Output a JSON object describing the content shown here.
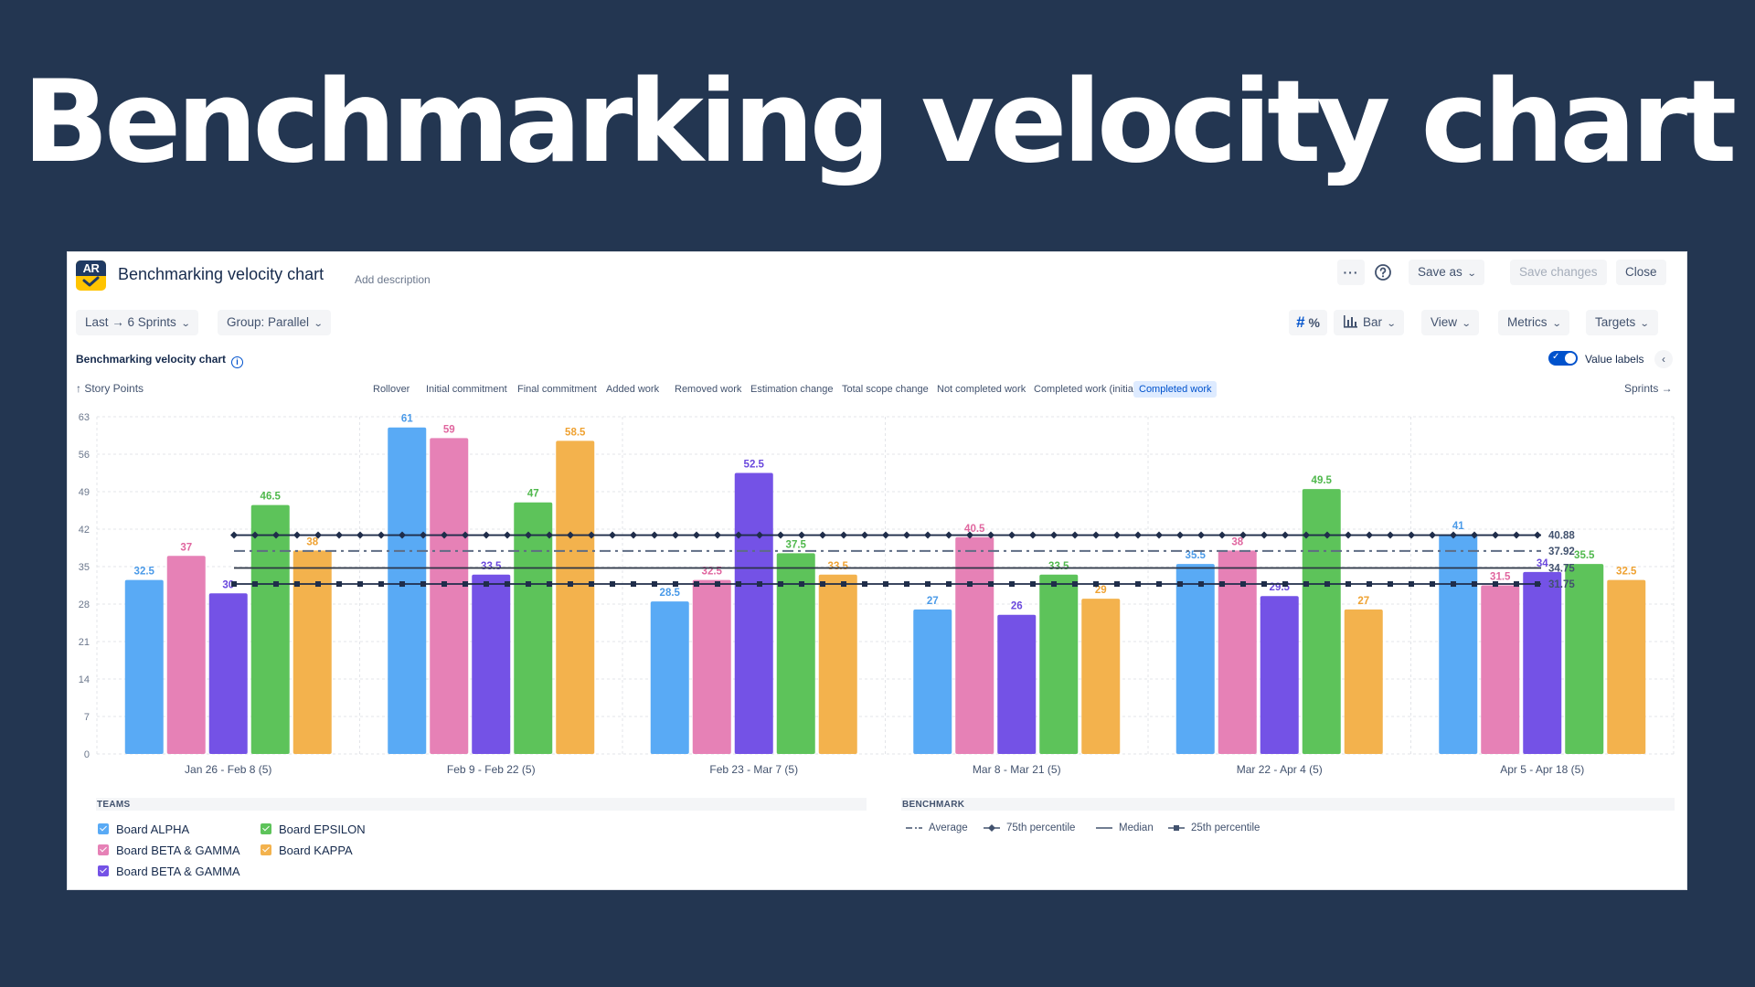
{
  "hero": {
    "title": "Benchmarking velocity chart"
  },
  "header": {
    "logo_text": "AR",
    "title": "Benchmarking velocity chart",
    "add_description": "Add description",
    "more_icon": "more-icon",
    "help_icon": "help-icon",
    "save_as": "Save as",
    "save_changes": "Save changes",
    "close": "Close"
  },
  "toolbar": {
    "range": "Last → 6 Sprints",
    "group": "Group: Parallel",
    "number_icon": "#",
    "percent_icon": "%",
    "chart_type": "Bar",
    "view": "View",
    "metrics": "Metrics",
    "targets": "Targets"
  },
  "chart_header": {
    "title": "Benchmarking velocity chart",
    "value_labels": "Value labels",
    "y_unit": "↑ Story Points",
    "x_unit": "Sprints →",
    "metric_tabs": [
      "Rollover",
      "Initial commitment",
      "Final commitment",
      "Added work",
      "Removed work",
      "Estimation change",
      "Total scope change",
      "Not completed work",
      "Completed work (initial)",
      "Completed work"
    ],
    "active_tab": "Completed work"
  },
  "chart_data": {
    "type": "bar",
    "title": "Benchmarking velocity chart",
    "ylabel": "Story Points",
    "xlabel": "Sprints",
    "ylim": [
      0,
      63
    ],
    "yticks": [
      0,
      7,
      14,
      21,
      28,
      35,
      42,
      49,
      56,
      63
    ],
    "categories": [
      "Jan 26 - Feb 8 (5)",
      "Feb 9 - Feb 22 (5)",
      "Feb 23 - Mar 7 (5)",
      "Mar 8 - Mar 21 (5)",
      "Mar 22 - Apr 4 (5)",
      "Apr 5 - Apr 18 (5)"
    ],
    "series": [
      {
        "name": "Board ALPHA",
        "color": "#59aaf5",
        "label_color": "#4a9ae8",
        "values": [
          32.5,
          61,
          28.5,
          27,
          35.5,
          41
        ]
      },
      {
        "name": "Board BETA & GAMMA",
        "color": "#e681b6",
        "label_color": "#e0669f",
        "values": [
          37,
          59,
          32.5,
          40.5,
          38,
          31.5
        ]
      },
      {
        "name": "Board BETA & GAMMA",
        "color": "#7452e6",
        "label_color": "#6a48dd",
        "values": [
          30,
          33.5,
          52.5,
          26,
          29.5,
          34
        ]
      },
      {
        "name": "Board EPSILON",
        "color": "#5dc35a",
        "label_color": "#4fb84c",
        "values": [
          46.5,
          47,
          37.5,
          33.5,
          49.5,
          35.5
        ]
      },
      {
        "name": "Board KAPPA",
        "color": "#f3b24d",
        "label_color": "#efa232",
        "values": [
          38,
          58.5,
          33.5,
          29,
          27,
          32.5
        ]
      }
    ],
    "benchmarks": [
      {
        "name": "Average",
        "value": 37.92,
        "label": "37.92",
        "style": "dashdot"
      },
      {
        "name": "75th percentile",
        "value": 40.88,
        "label": "40.88",
        "style": "diamond"
      },
      {
        "name": "Median",
        "value": 34.75,
        "label": "34.75",
        "style": "solid"
      },
      {
        "name": "25th percentile",
        "value": 31.75,
        "label": "31.75",
        "style": "square"
      }
    ]
  },
  "legend": {
    "teams_title": "TEAMS",
    "benchmark_title": "BENCHMARK",
    "teams": [
      {
        "name": "Board ALPHA",
        "color": "#59aaf5"
      },
      {
        "name": "Board BETA & GAMMA",
        "color": "#e681b6"
      },
      {
        "name": "Board BETA & GAMMA",
        "color": "#7452e6"
      },
      {
        "name": "Board EPSILON",
        "color": "#5dc35a"
      },
      {
        "name": "Board KAPPA",
        "color": "#f3b24d"
      }
    ],
    "benchmarks": [
      "Average",
      "75th percentile",
      "Median",
      "25th percentile"
    ]
  }
}
